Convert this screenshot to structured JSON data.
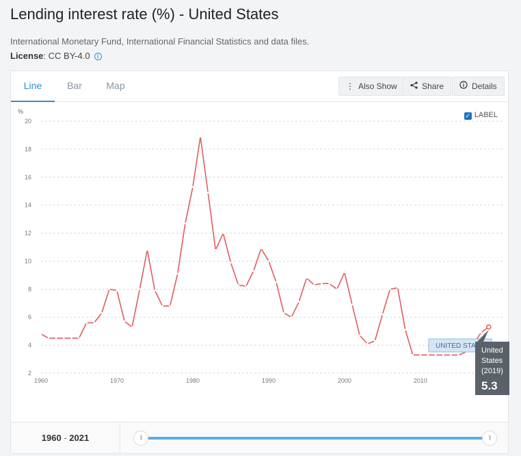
{
  "page": {
    "title": "Lending interest rate (%) - United States",
    "source": "International Monetary Fund, International Financial Statistics and data files.",
    "license_label": "License",
    "license_value": ": CC BY-4.0"
  },
  "tabs": [
    {
      "label": "Line",
      "active": true
    },
    {
      "label": "Bar",
      "active": false
    },
    {
      "label": "Map",
      "active": false
    }
  ],
  "toolbar": {
    "also_show": "Also Show",
    "share": "Share",
    "details": "Details"
  },
  "label_toggle": "LABEL",
  "range": {
    "start": "1960",
    "separator": " - ",
    "end": "2021"
  },
  "colors": {
    "series": "#e05c5c",
    "accent": "#2d8fd5",
    "grid": "#d9d9d9"
  },
  "tooltip": {
    "line1": "United",
    "line2": "States",
    "line3": "(2019)",
    "value": "5.3"
  },
  "chart_data": {
    "type": "line",
    "ylabel": "%",
    "ylim": [
      2,
      20
    ],
    "xlim": [
      1960,
      2021
    ],
    "yticks": [
      "2",
      "4",
      "6",
      "8",
      "10",
      "12",
      "14",
      "16",
      "18",
      "20"
    ],
    "xticks": [
      "1960",
      "1970",
      "1980",
      "1990",
      "2000",
      "2010"
    ],
    "grid": true,
    "series": [
      {
        "name": "UNITED STATES",
        "x": [
          1960,
          1961,
          1962,
          1963,
          1964,
          1965,
          1966,
          1967,
          1968,
          1969,
          1970,
          1971,
          1972,
          1973,
          1974,
          1975,
          1976,
          1977,
          1978,
          1979,
          1980,
          1981,
          1982,
          1983,
          1984,
          1985,
          1986,
          1987,
          1988,
          1989,
          1990,
          1991,
          1992,
          1993,
          1994,
          1995,
          1996,
          1997,
          1998,
          1999,
          2000,
          2001,
          2002,
          2003,
          2004,
          2005,
          2006,
          2007,
          2008,
          2009,
          2010,
          2011,
          2012,
          2013,
          2014,
          2015,
          2016,
          2017,
          2018,
          2019
        ],
        "values": [
          4.8,
          4.5,
          4.5,
          4.5,
          4.5,
          4.5,
          5.6,
          5.6,
          6.3,
          8.0,
          7.9,
          5.7,
          5.3,
          8.0,
          10.8,
          7.9,
          6.8,
          6.8,
          9.1,
          12.7,
          15.3,
          18.9,
          14.9,
          10.8,
          12.0,
          9.9,
          8.3,
          8.2,
          9.3,
          10.9,
          10.0,
          8.5,
          6.3,
          6.0,
          7.1,
          8.8,
          8.3,
          8.4,
          8.4,
          8.0,
          9.2,
          6.9,
          4.7,
          4.1,
          4.3,
          6.2,
          8.0,
          8.1,
          5.1,
          3.3,
          3.3,
          3.3,
          3.3,
          3.3,
          3.3,
          3.3,
          3.5,
          4.1,
          4.9,
          5.3
        ]
      }
    ],
    "annotation_label": "UNITED STATES"
  }
}
